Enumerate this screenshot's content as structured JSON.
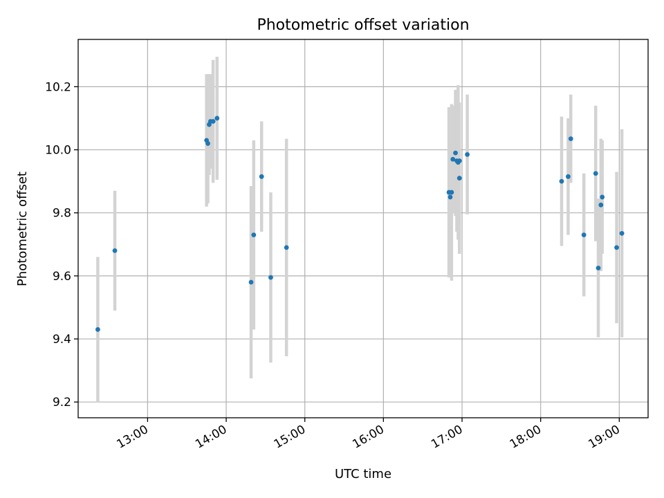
{
  "chart_data": {
    "type": "scatter",
    "title": "Photometric offset variation",
    "xlabel": "UTC time",
    "ylabel": "Photometric offset",
    "x_axis_type": "time",
    "xlim": [
      "12:07",
      "19:22"
    ],
    "ylim": [
      9.15,
      10.35
    ],
    "x_ticks": [
      "13:00",
      "14:00",
      "15:00",
      "16:00",
      "17:00",
      "18:00",
      "19:00"
    ],
    "y_ticks": [
      "9.2",
      "9.4",
      "9.6",
      "9.8",
      "10.0",
      "10.2"
    ],
    "grid": true,
    "legend": "none",
    "point_color": "#1f77b4",
    "errorbar_color": "#d3d3d3",
    "series": [
      {
        "points": [
          {
            "x": "12:22",
            "y": 9.43,
            "err": 0.23
          },
          {
            "x": "12:35",
            "y": 9.68,
            "err": 0.19
          },
          {
            "x": "13:45",
            "y": 10.03,
            "err": 0.21
          },
          {
            "x": "13:46",
            "y": 10.02,
            "err": 0.19
          },
          {
            "x": "13:47",
            "y": 10.08,
            "err": 0.16
          },
          {
            "x": "13:48",
            "y": 10.09,
            "err": 0.15
          },
          {
            "x": "13:50",
            "y": 10.09,
            "err": 0.195
          },
          {
            "x": "13:53",
            "y": 10.1,
            "err": 0.195
          },
          {
            "x": "14:19",
            "y": 9.58,
            "err": 0.305
          },
          {
            "x": "14:21",
            "y": 9.73,
            "err": 0.3
          },
          {
            "x": "14:27",
            "y": 9.915,
            "err": 0.175
          },
          {
            "x": "14:34",
            "y": 9.595,
            "err": 0.27
          },
          {
            "x": "14:46",
            "y": 9.69,
            "err": 0.345
          },
          {
            "x": "16:50",
            "y": 9.865,
            "err": 0.27
          },
          {
            "x": "16:51",
            "y": 9.85,
            "err": 0.245
          },
          {
            "x": "16:52",
            "y": 9.865,
            "err": 0.28
          },
          {
            "x": "16:53",
            "y": 9.97,
            "err": 0.17
          },
          {
            "x": "16:55",
            "y": 9.99,
            "err": 0.2
          },
          {
            "x": "16:56",
            "y": 9.965,
            "err": 0.225
          },
          {
            "x": "16:57",
            "y": 9.96,
            "err": 0.245
          },
          {
            "x": "16:58",
            "y": 9.91,
            "err": 0.24
          },
          {
            "x": "16:58",
            "y": 9.965,
            "err": 0.16
          },
          {
            "x": "17:04",
            "y": 9.985,
            "err": 0.19
          },
          {
            "x": "18:16",
            "y": 9.9,
            "err": 0.205
          },
          {
            "x": "18:21",
            "y": 9.915,
            "err": 0.185
          },
          {
            "x": "18:23",
            "y": 10.035,
            "err": 0.14
          },
          {
            "x": "18:33",
            "y": 9.73,
            "err": 0.195
          },
          {
            "x": "18:42",
            "y": 9.925,
            "err": 0.215
          },
          {
            "x": "18:44",
            "y": 9.625,
            "err": 0.22
          },
          {
            "x": "18:46",
            "y": 9.825,
            "err": 0.21
          },
          {
            "x": "18:47",
            "y": 9.85,
            "err": 0.18
          },
          {
            "x": "18:58",
            "y": 9.69,
            "err": 0.24
          },
          {
            "x": "19:02",
            "y": 9.735,
            "err": 0.33
          }
        ]
      }
    ]
  }
}
